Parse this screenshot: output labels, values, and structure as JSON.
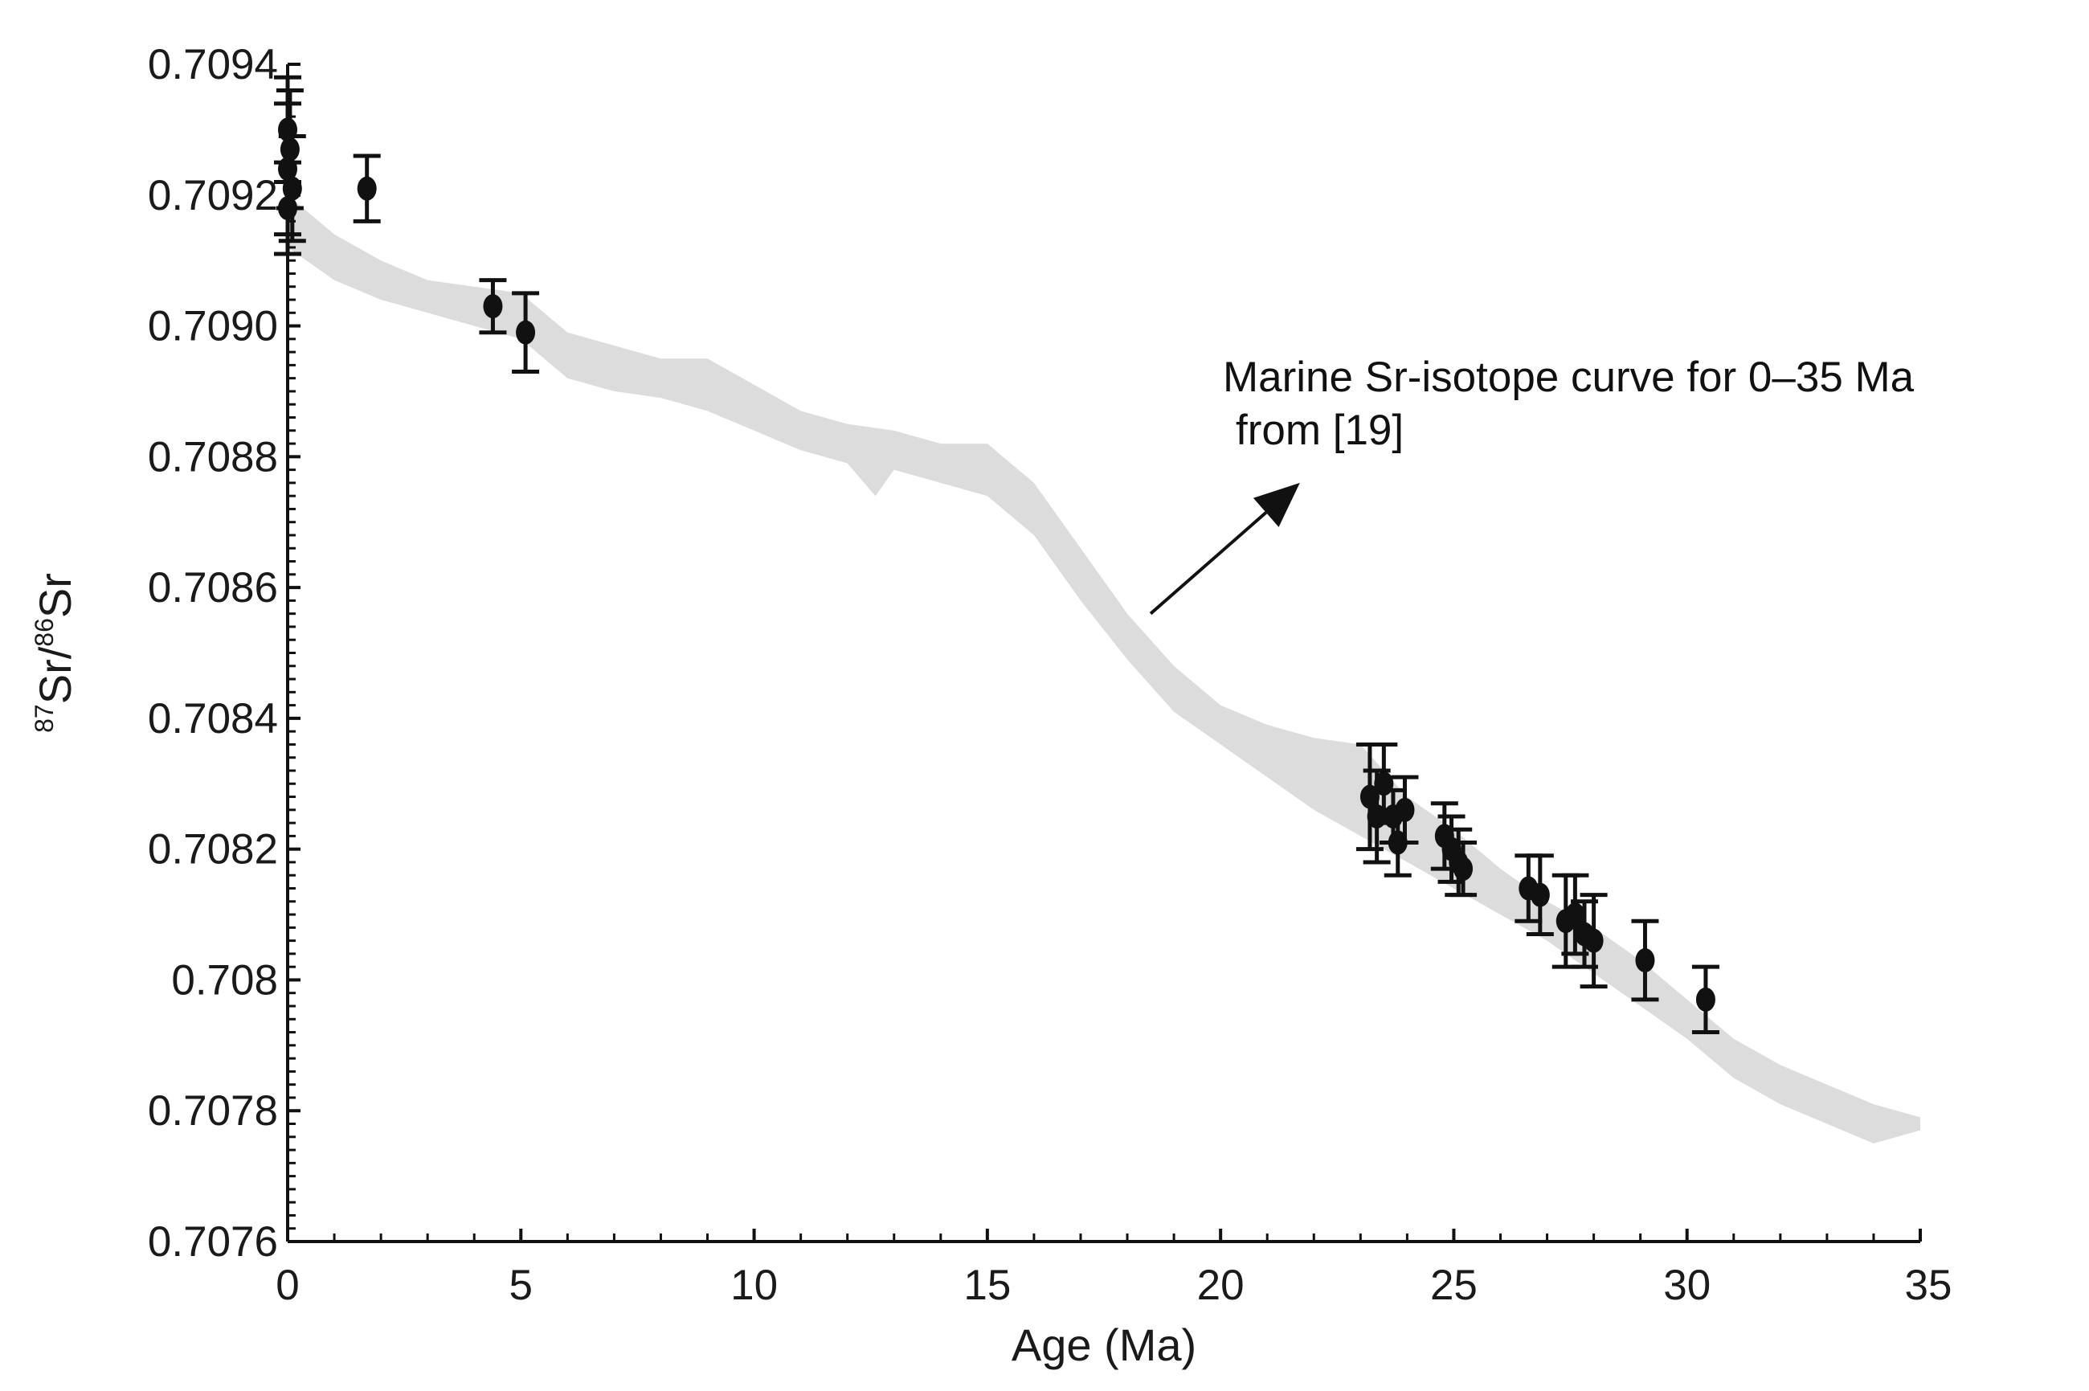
{
  "chart_data": {
    "type": "scatter",
    "title": "",
    "xlabel": "Age (Ma)",
    "ylabel": {
      "prefix_sup": "87",
      "prefix": "Sr/",
      "mid_sup": "86",
      "suffix": "Sr"
    },
    "xlim": [
      0,
      35
    ],
    "ylim": [
      0.7076,
      0.7094
    ],
    "x_ticks": [
      {
        "value": 0,
        "label": "0"
      },
      {
        "value": 5,
        "label": "5"
      },
      {
        "value": 10,
        "label": "10"
      },
      {
        "value": 15,
        "label": "15"
      },
      {
        "value": 20,
        "label": "20"
      },
      {
        "value": 25,
        "label": "25"
      },
      {
        "value": 30,
        "label": "30"
      },
      {
        "value": 35,
        "label": "35"
      }
    ],
    "y_ticks": [
      {
        "value": 0.7076,
        "label": "0.7076"
      },
      {
        "value": 0.7078,
        "label": "0.7078"
      },
      {
        "value": 0.708,
        "label": "0.708"
      },
      {
        "value": 0.7082,
        "label": "0.7082"
      },
      {
        "value": 0.7084,
        "label": "0.7084"
      },
      {
        "value": 0.7086,
        "label": "0.7086"
      },
      {
        "value": 0.7088,
        "label": "0.7088"
      },
      {
        "value": 0.709,
        "label": "0.7090"
      },
      {
        "value": 0.7092,
        "label": "0.7092"
      },
      {
        "value": 0.7094,
        "label": "0.7094"
      }
    ],
    "grid": false,
    "band": {
      "name": "Marine Sr-isotope curve",
      "color": "#dcdcdc",
      "upper": [
        [
          0,
          0.7092
        ],
        [
          1,
          0.70914
        ],
        [
          2,
          0.7091
        ],
        [
          3,
          0.70907
        ],
        [
          4,
          0.70906
        ],
        [
          5,
          0.70905
        ],
        [
          6,
          0.70899
        ],
        [
          7,
          0.70897
        ],
        [
          8,
          0.70895
        ],
        [
          9,
          0.70895
        ],
        [
          10,
          0.70891
        ],
        [
          11,
          0.70887
        ],
        [
          12,
          0.70885
        ],
        [
          13,
          0.70884
        ],
        [
          14,
          0.70882
        ],
        [
          15,
          0.70882
        ],
        [
          16,
          0.70876
        ],
        [
          17,
          0.70866
        ],
        [
          18,
          0.70856
        ],
        [
          19,
          0.70848
        ],
        [
          20,
          0.70842
        ],
        [
          21,
          0.70839
        ],
        [
          22,
          0.70837
        ],
        [
          23,
          0.70836
        ],
        [
          24,
          0.70828
        ],
        [
          25,
          0.70823
        ],
        [
          26,
          0.70817
        ],
        [
          27,
          0.70812
        ],
        [
          28,
          0.70808
        ],
        [
          29,
          0.70803
        ],
        [
          30,
          0.70797
        ],
        [
          31,
          0.70791
        ],
        [
          32,
          0.70787
        ],
        [
          33,
          0.70784
        ],
        [
          34,
          0.70781
        ],
        [
          35,
          0.70779
        ]
      ],
      "lower": [
        [
          0,
          0.70912
        ],
        [
          1,
          0.70907
        ],
        [
          2,
          0.70904
        ],
        [
          3,
          0.70902
        ],
        [
          4,
          0.709
        ],
        [
          5,
          0.70898
        ],
        [
          6,
          0.70892
        ],
        [
          7,
          0.7089
        ],
        [
          8,
          0.70889
        ],
        [
          9,
          0.70887
        ],
        [
          10,
          0.70884
        ],
        [
          11,
          0.70881
        ],
        [
          12,
          0.70879
        ],
        [
          12.6,
          0.70874
        ],
        [
          13,
          0.70878
        ],
        [
          14,
          0.70876
        ],
        [
          15,
          0.70874
        ],
        [
          16,
          0.70868
        ],
        [
          17,
          0.70858
        ],
        [
          18,
          0.70849
        ],
        [
          19,
          0.70841
        ],
        [
          20,
          0.70836
        ],
        [
          21,
          0.70831
        ],
        [
          22,
          0.70826
        ],
        [
          23,
          0.70822
        ],
        [
          24,
          0.70818
        ],
        [
          25,
          0.70814
        ],
        [
          26,
          0.7081
        ],
        [
          27,
          0.70806
        ],
        [
          28,
          0.70801
        ],
        [
          29,
          0.70796
        ],
        [
          30,
          0.70791
        ],
        [
          31,
          0.70785
        ],
        [
          32,
          0.70781
        ],
        [
          33,
          0.70778
        ],
        [
          34,
          0.70775
        ],
        [
          35,
          0.70777
        ]
      ]
    },
    "series": [
      {
        "name": "samples",
        "color": "#111111",
        "points": [
          {
            "x": 0.0,
            "y": 0.7093,
            "err": 8e-05
          },
          {
            "x": 0.05,
            "y": 0.70927,
            "err": 9e-05
          },
          {
            "x": 0.0,
            "y": 0.70924,
            "err": 0.0001
          },
          {
            "x": 0.1,
            "y": 0.70921,
            "err": 8e-05
          },
          {
            "x": 0.0,
            "y": 0.70918,
            "err": 7e-05
          },
          {
            "x": 1.7,
            "y": 0.70921,
            "err": 5e-05
          },
          {
            "x": 4.4,
            "y": 0.70903,
            "err": 4e-05
          },
          {
            "x": 5.1,
            "y": 0.70899,
            "err": 6e-05
          },
          {
            "x": 23.2,
            "y": 0.70828,
            "err": 8e-05
          },
          {
            "x": 23.35,
            "y": 0.70825,
            "err": 7e-05
          },
          {
            "x": 23.5,
            "y": 0.7083,
            "err": 6e-05
          },
          {
            "x": 23.7,
            "y": 0.70825,
            "err": 4e-05
          },
          {
            "x": 23.8,
            "y": 0.70821,
            "err": 5e-05
          },
          {
            "x": 23.95,
            "y": 0.70826,
            "err": 5e-05
          },
          {
            "x": 24.8,
            "y": 0.70822,
            "err": 5e-05
          },
          {
            "x": 24.95,
            "y": 0.7082,
            "err": 5e-05
          },
          {
            "x": 25.1,
            "y": 0.70818,
            "err": 5e-05
          },
          {
            "x": 25.2,
            "y": 0.70817,
            "err": 4e-05
          },
          {
            "x": 26.6,
            "y": 0.70814,
            "err": 5e-05
          },
          {
            "x": 26.85,
            "y": 0.70813,
            "err": 6e-05
          },
          {
            "x": 27.4,
            "y": 0.70809,
            "err": 7e-05
          },
          {
            "x": 27.6,
            "y": 0.7081,
            "err": 6e-05
          },
          {
            "x": 27.8,
            "y": 0.70807,
            "err": 5e-05
          },
          {
            "x": 28.0,
            "y": 0.70806,
            "err": 7e-05
          },
          {
            "x": 29.1,
            "y": 0.70803,
            "err": 6e-05
          },
          {
            "x": 30.4,
            "y": 0.70797,
            "err": 5e-05
          }
        ]
      }
    ],
    "annotation": {
      "text_line1": "Marine Sr-isotope curve  for  0–35 Ma",
      "text_line2": "from [19]",
      "arrow_from": [
        18.5,
        0.70856
      ],
      "arrow_to": [
        21.7,
        0.70876
      ]
    }
  }
}
